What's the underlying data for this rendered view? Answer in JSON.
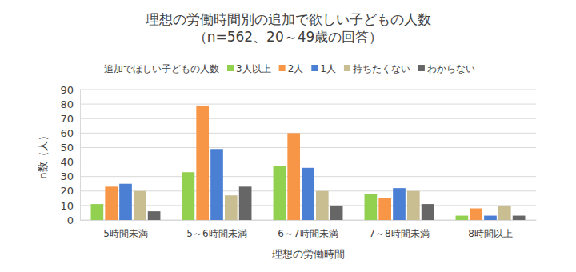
{
  "chart_data": {
    "type": "bar",
    "title": "理想の労働時間別の追加で欲しい子どもの人数",
    "subtitle": "（n=562、20～49歳の回答）",
    "legend_title": "追加でほしい子どもの人数",
    "x_label": "理想の労働時間",
    "y_label": "n数（人）",
    "categories": [
      "5時間未満",
      "5～6時間未満",
      "6～7時間未満",
      "7～8時間未満",
      "8時間以上"
    ],
    "series": [
      {
        "name": "3人以上",
        "color": "#92d050",
        "values": [
          11,
          33,
          37,
          18,
          3
        ]
      },
      {
        "name": "2人",
        "color": "#f79646",
        "values": [
          23,
          79,
          60,
          15,
          8
        ]
      },
      {
        "name": "1人",
        "color": "#4a7fd4",
        "values": [
          25,
          49,
          36,
          22,
          3
        ]
      },
      {
        "name": "持ちたくない",
        "color": "#c9bd92",
        "values": [
          20,
          17,
          20,
          20,
          10
        ]
      },
      {
        "name": "わからない",
        "color": "#666666",
        "values": [
          6,
          23,
          10,
          11,
          3
        ]
      }
    ],
    "ylim": [
      0,
      90
    ],
    "yticks": [
      0,
      10,
      20,
      30,
      40,
      50,
      60,
      70,
      80,
      90
    ],
    "grid": true,
    "legend": "top"
  }
}
